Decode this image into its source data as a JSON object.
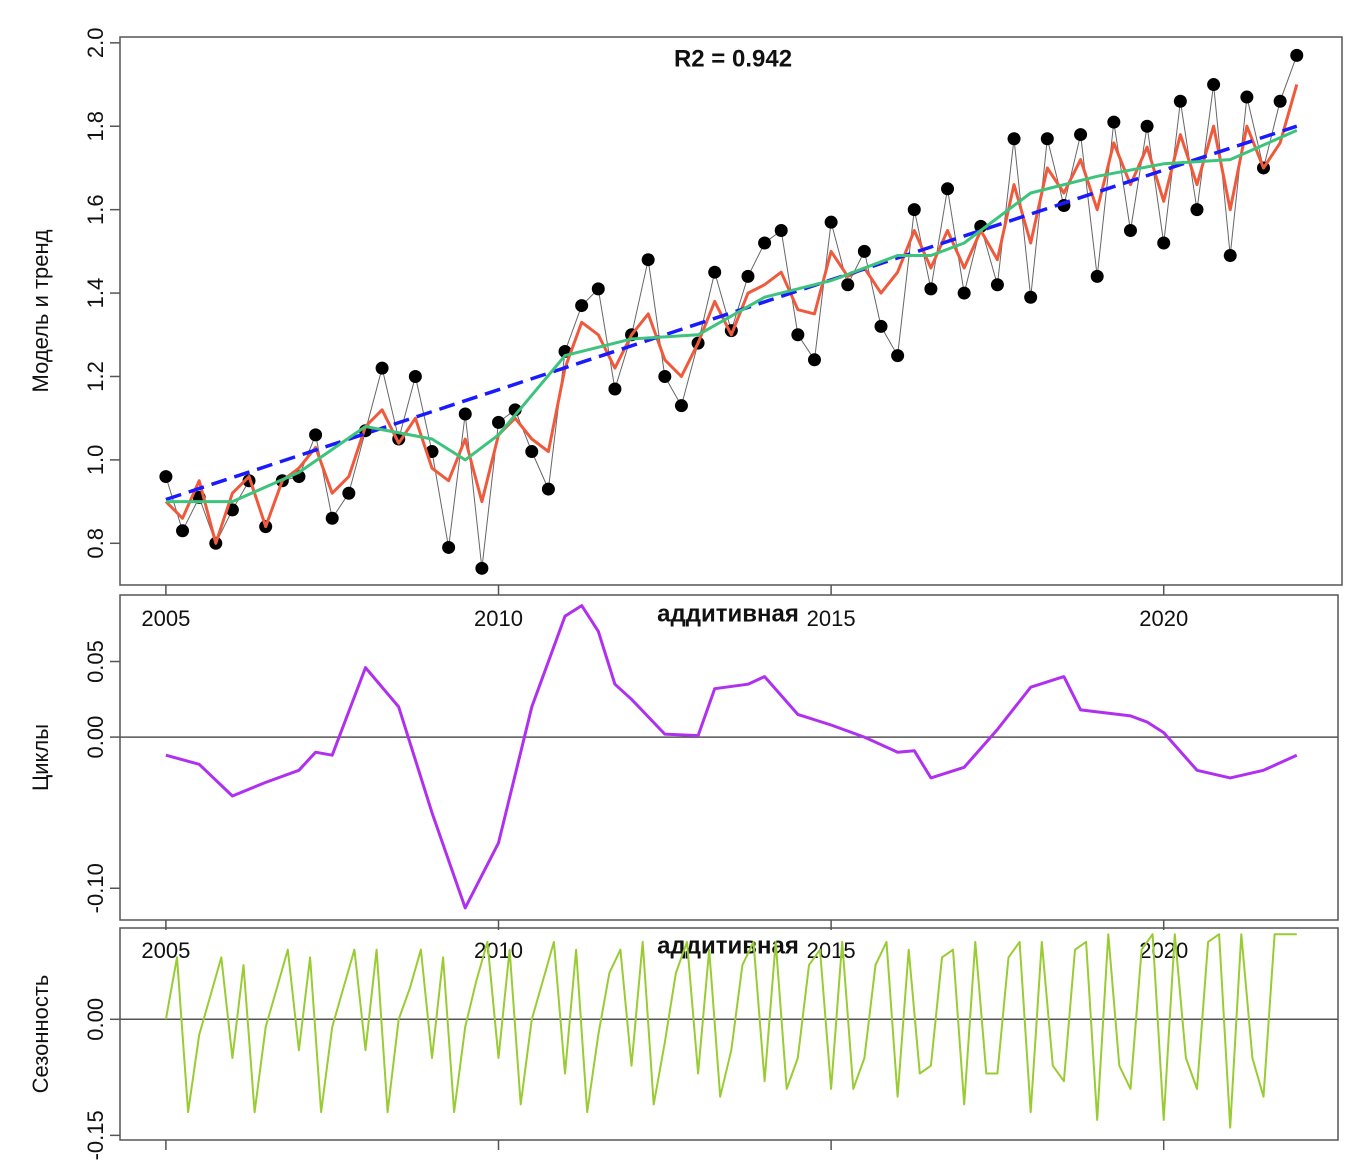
{
  "chart_data": [
    {
      "type": "line",
      "annotation": "R2 = 0.942",
      "ylabel": "Модель и тренд",
      "xlim": [
        2004.31,
        2022.68
      ],
      "ylim": [
        0.7,
        2.014
      ],
      "xticks": [
        2005,
        2010,
        2015,
        2020
      ],
      "yticks": [
        0.8,
        {
          "value": 1.0,
          "label": "1.0"
        },
        1.2,
        1.4,
        1.6,
        1.8,
        {
          "value": 2.0,
          "label": "2.0"
        }
      ],
      "series": [
        {
          "style": "points",
          "color": "#000000",
          "x": [
            2005,
            2005.25,
            2005.5,
            2005.75,
            2006,
            2006.25,
            2006.5,
            2006.75,
            2007,
            2007.25,
            2007.5,
            2007.75,
            2008,
            2008.25,
            2008.5,
            2008.75,
            2009,
            2009.25,
            2009.5,
            2009.75,
            2010,
            2010.25,
            2010.5,
            2010.75,
            2011,
            2011.25,
            2011.5,
            2011.75,
            2012,
            2012.25,
            2012.5,
            2012.75,
            2013,
            2013.25,
            2013.5,
            2013.75,
            2014,
            2014.25,
            2014.5,
            2014.75,
            2015,
            2015.25,
            2015.5,
            2015.75,
            2016,
            2016.25,
            2016.5,
            2016.75,
            2017,
            2017.25,
            2017.5,
            2017.75,
            2018,
            2018.25,
            2018.5,
            2018.75,
            2019,
            2019.25,
            2019.5,
            2019.75,
            2020,
            2020.25,
            2020.5,
            2020.75,
            2021,
            2021.25,
            2021.5,
            2021.75,
            2022
          ],
          "values": [
            0.96,
            0.83,
            0.91,
            0.8,
            0.88,
            0.95,
            0.84,
            0.95,
            0.96,
            1.06,
            0.86,
            0.92,
            1.07,
            1.22,
            1.05,
            1.2,
            1.02,
            0.79,
            1.11,
            0.74,
            1.09,
            1.12,
            1.02,
            0.93,
            1.26,
            1.37,
            1.41,
            1.17,
            1.3,
            1.48,
            1.2,
            1.13,
            1.28,
            1.45,
            1.31,
            1.44,
            1.52,
            1.55,
            1.3,
            1.24,
            1.57,
            1.42,
            1.5,
            1.32,
            1.25,
            1.6,
            1.41,
            1.65,
            1.4,
            1.56,
            1.42,
            1.77,
            1.39,
            1.77,
            1.61,
            1.78,
            1.44,
            1.81,
            1.55,
            1.8,
            1.52,
            1.86,
            1.6,
            1.9,
            1.49,
            1.87,
            1.7,
            1.86,
            1.97
          ]
        },
        {
          "style": "line",
          "color": "#f05a3c",
          "x": [
            2005,
            2005.25,
            2005.5,
            2005.75,
            2006,
            2006.25,
            2006.5,
            2006.75,
            2007,
            2007.25,
            2007.5,
            2007.75,
            2008,
            2008.25,
            2008.5,
            2008.75,
            2009,
            2009.25,
            2009.5,
            2009.75,
            2010,
            2010.25,
            2010.5,
            2010.75,
            2011,
            2011.25,
            2011.5,
            2011.75,
            2012,
            2012.25,
            2012.5,
            2012.75,
            2013,
            2013.25,
            2013.5,
            2013.75,
            2014,
            2014.25,
            2014.5,
            2014.75,
            2015,
            2015.25,
            2015.5,
            2015.75,
            2016,
            2016.25,
            2016.5,
            2016.75,
            2017,
            2017.25,
            2017.5,
            2017.75,
            2018,
            2018.25,
            2018.5,
            2018.75,
            2019,
            2019.25,
            2019.5,
            2019.75,
            2020,
            2020.25,
            2020.5,
            2020.75,
            2021,
            2021.25,
            2021.5,
            2021.75,
            2022
          ],
          "values": [
            0.9,
            0.86,
            0.95,
            0.8,
            0.92,
            0.96,
            0.84,
            0.95,
            0.98,
            1.03,
            0.92,
            0.96,
            1.08,
            1.12,
            1.04,
            1.1,
            0.98,
            0.95,
            1.05,
            0.9,
            1.06,
            1.1,
            1.05,
            1.02,
            1.22,
            1.33,
            1.3,
            1.22,
            1.3,
            1.35,
            1.24,
            1.2,
            1.28,
            1.38,
            1.3,
            1.4,
            1.42,
            1.45,
            1.36,
            1.35,
            1.5,
            1.44,
            1.46,
            1.4,
            1.45,
            1.55,
            1.46,
            1.55,
            1.46,
            1.55,
            1.48,
            1.66,
            1.52,
            1.7,
            1.64,
            1.72,
            1.6,
            1.76,
            1.66,
            1.75,
            1.62,
            1.78,
            1.66,
            1.8,
            1.6,
            1.8,
            1.7,
            1.76,
            1.9
          ]
        },
        {
          "style": "dashed",
          "color": "#1a1aff",
          "x": [
            2005,
            2022
          ],
          "values": [
            0.905,
            1.8
          ]
        },
        {
          "style": "line",
          "color": "#3cc47c",
          "x": [
            2005,
            2006,
            2007,
            2008,
            2009,
            2009.5,
            2010,
            2011,
            2012,
            2013,
            2014,
            2015,
            2016,
            2016.5,
            2017,
            2018,
            2019,
            2020,
            2021,
            2022
          ],
          "values": [
            0.9,
            0.9,
            0.97,
            1.08,
            1.05,
            1.0,
            1.06,
            1.25,
            1.29,
            1.3,
            1.39,
            1.43,
            1.49,
            1.49,
            1.52,
            1.64,
            1.68,
            1.71,
            1.72,
            1.79
          ]
        }
      ]
    },
    {
      "type": "line",
      "title": "аддитивная",
      "ylabel": "Циклы",
      "zero_line": true,
      "xlim": [
        2004.31,
        2022.62
      ],
      "ylim": [
        -0.121,
        0.094
      ],
      "xticks": [
        2005,
        2010,
        2015,
        2020
      ],
      "yticks": [
        0.05,
        {
          "value": 0,
          "label": "0.00"
        },
        {
          "value": -0.1,
          "label": "-0.10"
        }
      ],
      "series": [
        {
          "style": "line",
          "color": "#b030f0",
          "x": [
            2005,
            2005.5,
            2006,
            2006.5,
            2007,
            2007.25,
            2007.5,
            2008,
            2008.5,
            2009,
            2009.5,
            2010,
            2010.5,
            2011,
            2011.25,
            2011.5,
            2011.75,
            2012,
            2012.5,
            2013,
            2013.25,
            2013.75,
            2014,
            2014.5,
            2015,
            2015.5,
            2016,
            2016.25,
            2016.5,
            2017,
            2017.5,
            2018,
            2018.5,
            2018.75,
            2019.5,
            2019.75,
            2020,
            2020.5,
            2021,
            2021.5,
            2022
          ],
          "values": [
            -0.012,
            -0.018,
            -0.039,
            -0.03,
            -0.022,
            -0.01,
            -0.012,
            0.046,
            0.02,
            -0.05,
            -0.113,
            -0.07,
            0.02,
            0.08,
            0.087,
            0.07,
            0.035,
            0.025,
            0.002,
            0.001,
            0.032,
            0.035,
            0.04,
            0.015,
            0.008,
            0.0,
            -0.01,
            -0.009,
            -0.027,
            -0.02,
            0.005,
            0.033,
            0.04,
            0.018,
            0.014,
            0.01,
            0.003,
            -0.022,
            -0.027,
            -0.022,
            -0.012
          ]
        }
      ]
    },
    {
      "type": "line",
      "title": "аддитивная",
      "ylabel": "Сезонность",
      "zero_line": true,
      "xlim": [
        2004.31,
        2022.62
      ],
      "ylim": [
        -0.156,
        0.118
      ],
      "yticks": [
        {
          "value": 0,
          "label": "0.00"
        },
        {
          "value": -0.15,
          "label": "-0.15"
        }
      ],
      "series": [
        {
          "style": "line",
          "color": "#99cc33",
          "x": [
            2005,
            2005.167,
            2005.333,
            2005.5,
            2005.667,
            2005.833,
            2006,
            2006.167,
            2006.333,
            2006.5,
            2006.667,
            2006.833,
            2007,
            2007.167,
            2007.333,
            2007.5,
            2007.667,
            2007.833,
            2008,
            2008.167,
            2008.333,
            2008.5,
            2008.667,
            2008.833,
            2009,
            2009.167,
            2009.333,
            2009.5,
            2009.667,
            2009.833,
            2010,
            2010.167,
            2010.333,
            2010.5,
            2010.667,
            2010.833,
            2011,
            2011.167,
            2011.333,
            2011.5,
            2011.667,
            2011.833,
            2012,
            2012.167,
            2012.333,
            2012.5,
            2012.667,
            2012.833,
            2013,
            2013.167,
            2013.333,
            2013.5,
            2013.667,
            2013.833,
            2014,
            2014.167,
            2014.333,
            2014.5,
            2014.667,
            2014.833,
            2015,
            2015.167,
            2015.333,
            2015.5,
            2015.667,
            2015.833,
            2016,
            2016.167,
            2016.333,
            2016.5,
            2016.667,
            2016.833,
            2017,
            2017.167,
            2017.333,
            2017.5,
            2017.667,
            2017.833,
            2018,
            2018.167,
            2018.333,
            2018.5,
            2018.667,
            2018.833,
            2019,
            2019.167,
            2019.333,
            2019.5,
            2019.667,
            2019.833,
            2020,
            2020.167,
            2020.333,
            2020.5,
            2020.667,
            2020.833,
            2021,
            2021.167,
            2021.333,
            2021.5,
            2021.667,
            2021.833,
            2022
          ],
          "values": [
            0.0,
            0.08,
            -0.12,
            -0.02,
            0.03,
            0.08,
            -0.05,
            0.07,
            -0.12,
            -0.01,
            0.04,
            0.09,
            -0.04,
            0.08,
            -0.12,
            -0.01,
            0.04,
            0.09,
            -0.04,
            0.09,
            -0.12,
            0.0,
            0.04,
            0.09,
            -0.05,
            0.08,
            -0.12,
            -0.01,
            0.05,
            0.1,
            -0.05,
            0.09,
            -0.11,
            0.0,
            0.05,
            0.1,
            -0.07,
            0.09,
            -0.12,
            -0.02,
            0.06,
            0.09,
            -0.06,
            0.1,
            -0.11,
            -0.03,
            0.06,
            0.1,
            -0.07,
            0.09,
            -0.1,
            -0.04,
            0.07,
            0.1,
            -0.08,
            0.1,
            -0.09,
            -0.05,
            0.07,
            0.09,
            -0.09,
            0.1,
            -0.09,
            -0.05,
            0.07,
            0.1,
            -0.1,
            0.09,
            -0.07,
            -0.06,
            0.08,
            0.09,
            -0.11,
            0.1,
            -0.07,
            -0.07,
            0.08,
            0.1,
            -0.12,
            0.1,
            -0.06,
            -0.08,
            0.09,
            0.1,
            -0.13,
            0.11,
            -0.06,
            -0.09,
            0.09,
            0.11,
            -0.13,
            0.11,
            -0.05,
            -0.09,
            0.1,
            0.11,
            -0.14,
            0.11,
            -0.05,
            -0.1,
            0.11,
            0.11,
            0.11
          ]
        }
      ]
    }
  ]
}
